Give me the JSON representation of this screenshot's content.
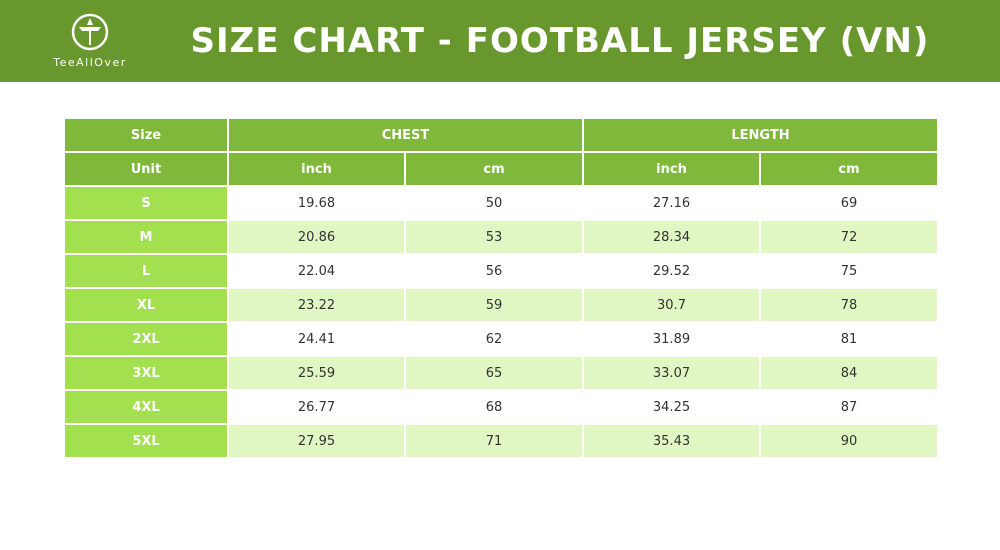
{
  "header": {
    "title": "SIZE CHART - FOOTBALL JERSEY (VN)",
    "logo_text": "TeeAllOver"
  },
  "table": {
    "size_label": "Size",
    "unit_label": "Unit",
    "chest_label": "CHEST",
    "length_label": "LENGTH",
    "units": [
      "inch",
      "cm",
      "inch",
      "cm"
    ],
    "rows": [
      {
        "size": "S",
        "chest_inch": "19.68",
        "chest_cm": "50",
        "length_inch": "27.16",
        "length_cm": "69"
      },
      {
        "size": "M",
        "chest_inch": "20.86",
        "chest_cm": "53",
        "length_inch": "28.34",
        "length_cm": "72"
      },
      {
        "size": "L",
        "chest_inch": "22.04",
        "chest_cm": "56",
        "length_inch": "29.52",
        "length_cm": "75"
      },
      {
        "size": "XL",
        "chest_inch": "23.22",
        "chest_cm": "59",
        "length_inch": "30.7",
        "length_cm": "78"
      },
      {
        "size": "2XL",
        "chest_inch": "24.41",
        "chest_cm": "62",
        "length_inch": "31.89",
        "length_cm": "81"
      },
      {
        "size": "3XL",
        "chest_inch": "25.59",
        "chest_cm": "65",
        "length_inch": "33.07",
        "length_cm": "84"
      },
      {
        "size": "4XL",
        "chest_inch": "26.77",
        "chest_cm": "68",
        "length_inch": "34.25",
        "length_cm": "87"
      },
      {
        "size": "5XL",
        "chest_inch": "27.95",
        "chest_cm": "71",
        "length_inch": "35.43",
        "length_cm": "90"
      }
    ]
  },
  "colors": {
    "banner": "#68982d",
    "header_cell": "#80b83b",
    "size_cell": "#a3e04f",
    "row_alt": "#e0f7c4"
  }
}
